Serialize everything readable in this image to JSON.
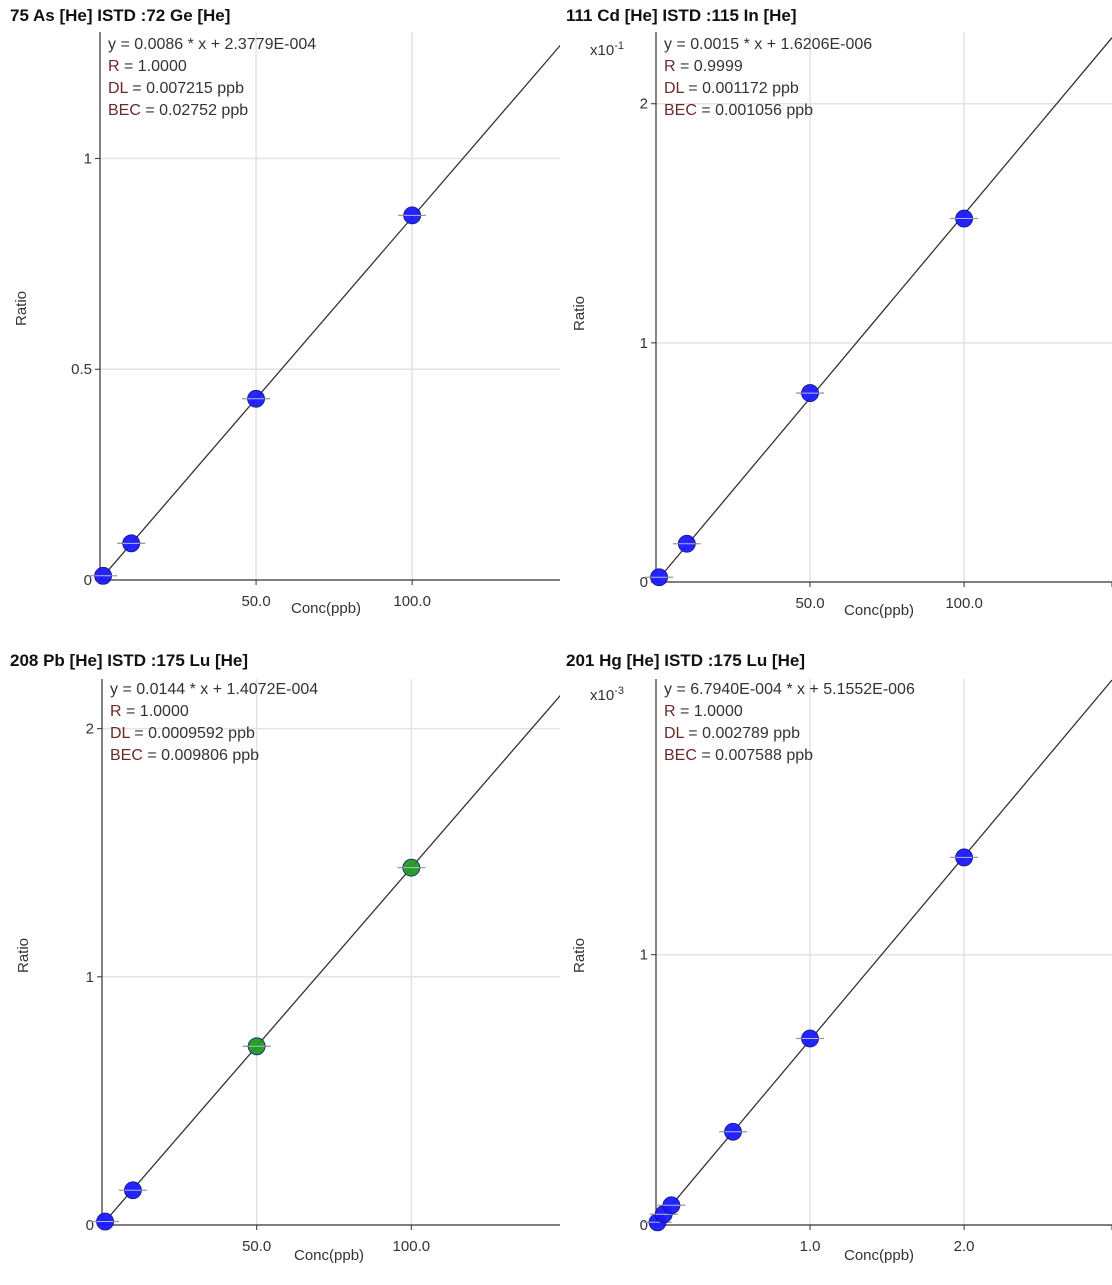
{
  "chart_data": [
    {
      "type": "scatter",
      "title": "75 As [He] ISTD :72 Ge [He]",
      "xlabel": "Conc(ppb)",
      "ylabel": "Ratio",
      "y_multiplier": {
        "base": "",
        "exp": ""
      },
      "equation": "y = 0.0086 * x + 2.3779E-004",
      "stats": [
        {
          "label": "R",
          "sep": " = ",
          "value": "1.0000"
        },
        {
          "label": "DL",
          "sep": " = ",
          "value": "0.007215 ppb"
        },
        {
          "label": "BEC",
          "sep": " = ",
          "value": "0.02752 ppb"
        }
      ],
      "xlim": [
        0,
        148
      ],
      "ylim": [
        0,
        1.3
      ],
      "x_ticks": [
        {
          "v": 50,
          "label": "50.0"
        },
        {
          "v": 100,
          "label": "100.0"
        }
      ],
      "y_ticks": [
        {
          "v": 0,
          "label": "0"
        },
        {
          "v": 0.5,
          "label": "0.5"
        },
        {
          "v": 1,
          "label": "1"
        }
      ],
      "fit": {
        "slope": 0.0086,
        "intercept": 0.00023779
      },
      "points": [
        {
          "x": 1,
          "y": 0.01,
          "color": "#1a1aff"
        },
        {
          "x": 10,
          "y": 0.087,
          "color": "#1a1aff"
        },
        {
          "x": 50,
          "y": 0.43,
          "color": "#1a1aff"
        },
        {
          "x": 100,
          "y": 0.865,
          "color": "#1a1aff"
        }
      ],
      "grid": true
    },
    {
      "type": "scatter",
      "title": "111 Cd [He] ISTD :115 In [He]",
      "xlabel": "Conc(ppb)",
      "ylabel": "Ratio",
      "y_multiplier": {
        "base": "x10",
        "exp": "-1"
      },
      "equation": "y = 0.0015 * x + 1.6206E-006",
      "stats": [
        {
          "label": "R",
          "sep": " = ",
          "value": "0.9999"
        },
        {
          "label": "DL",
          "sep": " = ",
          "value": "0.001172 ppb"
        },
        {
          "label": "BEC",
          "sep": " = ",
          "value": "0.001056 ppb"
        }
      ],
      "xlim": [
        0,
        148
      ],
      "ylim": [
        0,
        2.3
      ],
      "x_ticks": [
        {
          "v": 50,
          "label": "50.0"
        },
        {
          "v": 100,
          "label": "100.0"
        }
      ],
      "y_ticks": [
        {
          "v": 0,
          "label": "0"
        },
        {
          "v": 1,
          "label": "1"
        },
        {
          "v": 2,
          "label": "2"
        }
      ],
      "fit": {
        "slope": 0.01538,
        "intercept": 0.0
      },
      "points": [
        {
          "x": 1,
          "y": 0.02,
          "color": "#1a1aff"
        },
        {
          "x": 10,
          "y": 0.16,
          "color": "#1a1aff"
        },
        {
          "x": 50,
          "y": 0.79,
          "color": "#1a1aff"
        },
        {
          "x": 100,
          "y": 1.52,
          "color": "#1a1aff"
        }
      ],
      "grid": true
    },
    {
      "type": "scatter",
      "title": "208 Pb [He] ISTD :175 Lu [He]",
      "xlabel": "Conc(ppb)",
      "ylabel": "Ratio",
      "y_multiplier": {
        "base": "",
        "exp": ""
      },
      "equation": "y = 0.0144 * x + 1.4072E-004",
      "stats": [
        {
          "label": "R",
          "sep": " = ",
          "value": "1.0000"
        },
        {
          "label": "DL",
          "sep": " = ",
          "value": "0.0009592 ppb"
        },
        {
          "label": "BEC",
          "sep": " = ",
          "value": "0.009806 ppb"
        }
      ],
      "xlim": [
        0,
        150
      ],
      "ylim": [
        0,
        2.2
      ],
      "x_ticks": [
        {
          "v": 50,
          "label": "50.0"
        },
        {
          "v": 100,
          "label": "100.0"
        }
      ],
      "y_ticks": [
        {
          "v": 0,
          "label": "0"
        },
        {
          "v": 1,
          "label": "1"
        },
        {
          "v": 2,
          "label": "2"
        }
      ],
      "fit": {
        "slope": 0.0144,
        "intercept": 0.00014072
      },
      "points": [
        {
          "x": 1,
          "y": 0.014,
          "color": "#1a1aff"
        },
        {
          "x": 10,
          "y": 0.14,
          "color": "#1a1aff"
        },
        {
          "x": 50,
          "y": 0.72,
          "color": "#1f9a1f"
        },
        {
          "x": 100,
          "y": 1.44,
          "color": "#1f9a1f"
        }
      ],
      "grid": true
    },
    {
      "type": "scatter",
      "title": "201 Hg [He] ISTD :175 Lu [He]",
      "xlabel": "Conc(ppb)",
      "ylabel": "Ratio",
      "y_multiplier": {
        "base": "x10",
        "exp": "-3"
      },
      "equation": "y = 6.7940E-004 * x + 5.1552E-006",
      "stats": [
        {
          "label": "R",
          "sep": " = ",
          "value": "1.0000"
        },
        {
          "label": "DL",
          "sep": " = ",
          "value": "0.002789 ppb"
        },
        {
          "label": "BEC",
          "sep": " = ",
          "value": "0.007588 ppb"
        }
      ],
      "xlim": [
        0,
        2.96
      ],
      "ylim": [
        0,
        2.02
      ],
      "x_ticks": [
        {
          "v": 1,
          "label": "1.0"
        },
        {
          "v": 2,
          "label": "2.0"
        }
      ],
      "y_ticks": [
        {
          "v": 0,
          "label": "0"
        },
        {
          "v": 1,
          "label": "1"
        }
      ],
      "fit": {
        "slope": 0.6794,
        "intercept": 0.0052
      },
      "points": [
        {
          "x": 0.01,
          "y": 0.01,
          "color": "#1a1aff"
        },
        {
          "x": 0.05,
          "y": 0.04,
          "color": "#1a1aff"
        },
        {
          "x": 0.1,
          "y": 0.073,
          "color": "#1a1aff"
        },
        {
          "x": 0.5,
          "y": 0.345,
          "color": "#1a1aff"
        },
        {
          "x": 1,
          "y": 0.69,
          "color": "#1a1aff"
        },
        {
          "x": 2,
          "y": 1.36,
          "color": "#1a1aff"
        }
      ],
      "grid": true
    }
  ]
}
